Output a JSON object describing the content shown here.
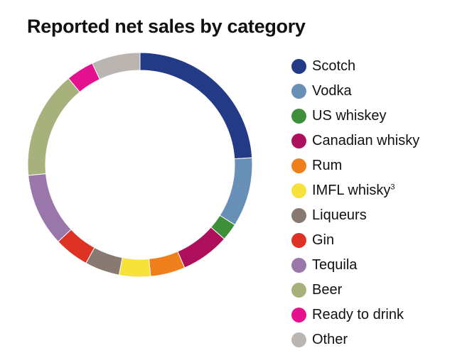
{
  "chart_data": {
    "type": "pie",
    "style": "donut",
    "title": "Reported net sales by category",
    "legend_position": "right",
    "series": [
      {
        "name": "Scotch",
        "value": 24,
        "color": "#233a86"
      },
      {
        "name": "Vodka",
        "value": 10,
        "color": "#6890b6"
      },
      {
        "name": "US whiskey",
        "value": 2.5,
        "color": "#3f8f3a"
      },
      {
        "name": "Canadian whisky",
        "value": 7,
        "color": "#ae0f5c"
      },
      {
        "name": "Rum",
        "value": 5,
        "color": "#ef7f1a"
      },
      {
        "name": "IMFL whisky",
        "sup": "3",
        "value": 4.5,
        "color": "#f6e23a"
      },
      {
        "name": "Liqueurs",
        "value": 5,
        "color": "#887a72"
      },
      {
        "name": "Gin",
        "value": 5,
        "color": "#de3324"
      },
      {
        "name": "Tequila",
        "value": 10.5,
        "color": "#9977ab"
      },
      {
        "name": "Beer",
        "value": 15.5,
        "color": "#a6b17c"
      },
      {
        "name": "Ready to drink",
        "value": 4,
        "color": "#e3118e"
      },
      {
        "name": "Other",
        "value": 7,
        "color": "#bbb5b1"
      }
    ]
  }
}
